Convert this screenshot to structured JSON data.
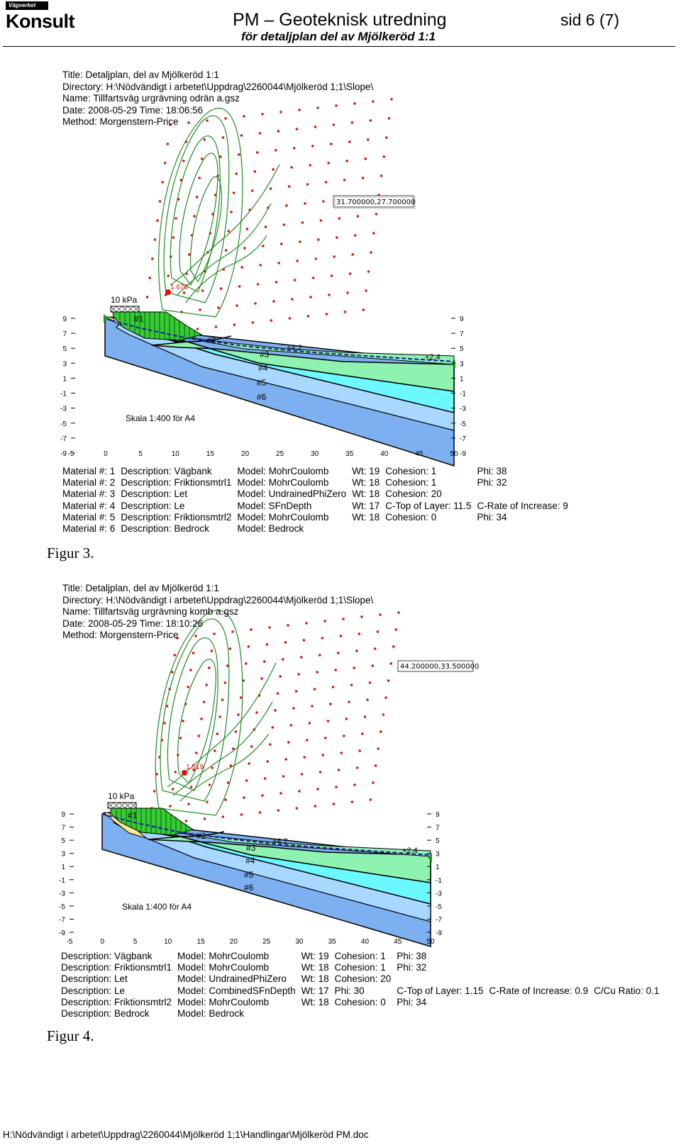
{
  "header": {
    "logo_top": "Vägverket",
    "logo_main": "Konsult",
    "title": "PM – Geoteknisk utredning",
    "subtitle": "för detaljplan del av Mjölkeröd 1:1",
    "page": "sid 6 (7)"
  },
  "fig3": {
    "meta": [
      "Title: Detaljplan, del av Mjölkeröd 1:1",
      "Directory: H:\\Nödvändigt i arbetet\\Uppdrag\\2260044\\Mjölkeröd 1;1\\Slope\\",
      "Name: Tillfartsväg urgrävning odrän a.gsz",
      "Date: 2008-05-29 Time: 18:06:56",
      "Method: Morgenstern-Price"
    ],
    "coord_box": "31.700000,27.700000",
    "factor_of_safety": "1.670",
    "load": "10 kPa",
    "scale_note": "Skala 1:400 för A4",
    "level_left": "+4.2",
    "level_right": "+2.4",
    "material_labels": [
      "#1",
      "#2",
      "#3",
      "#4",
      "#5",
      "#6"
    ],
    "x_ticks": [
      "-5",
      "0",
      "5",
      "10",
      "15",
      "20",
      "25",
      "30",
      "35",
      "40",
      "45",
      "50"
    ],
    "y_ticks": [
      "9",
      "7",
      "5",
      "3",
      "1",
      "-1",
      "-3",
      "-5",
      "-7",
      "-9"
    ],
    "materials": [
      [
        "Material #: 1",
        "Description: Vägbank",
        "Model: MohrCoulomb",
        "Wt: 19",
        "Cohesion: 1",
        "Phi: 38"
      ],
      [
        "Material #: 2",
        "Description: Friktionsmtrl1",
        "Model: MohrCoulomb",
        "Wt: 18",
        "Cohesion: 1",
        "Phi: 32"
      ],
      [
        "Material #: 3",
        "Description: Let",
        "Model: UndrainedPhiZero",
        "Wt: 18",
        "Cohesion: 20",
        ""
      ],
      [
        "Material #: 4",
        "Description: Le",
        "Model: SFnDepth",
        "Wt: 17",
        "C-Top of Layer: 11.5",
        "C-Rate of Increase: 9"
      ],
      [
        "Material #: 5",
        "Description: Friktionsmtrl2",
        "Model: MohrCoulomb",
        "Wt: 18",
        "Cohesion: 0",
        "Phi: 34"
      ],
      [
        "Material #: 6",
        "Description: Bedrock",
        "Model: Bedrock",
        "",
        "",
        ""
      ]
    ],
    "caption": "Figur 3."
  },
  "fig4": {
    "meta": [
      "Title: Detaljplan, del av Mjölkeröd 1:1",
      "Directory: H:\\Nödvändigt i arbetet\\Uppdrag\\2260044\\Mjölkeröd 1;1\\Slope\\",
      "Name: Tillfartsväg urgrävning komb a.gsz",
      "Date: 2008-05-29 Time: 18:10:26",
      "Method: Morgenstern-Price"
    ],
    "coord_box": "44.200000,33.500000",
    "factor_of_safety": "1.519",
    "load": "10 kPa",
    "scale_note": "Skala 1:400 för A4",
    "level_left": "+4.2",
    "level_right": "+2.4",
    "material_labels": [
      "#1",
      "#2",
      "#3",
      "#4",
      "#5",
      "#6"
    ],
    "x_ticks": [
      "-5",
      "0",
      "5",
      "10",
      "15",
      "20",
      "25",
      "30",
      "35",
      "40",
      "45",
      "50"
    ],
    "y_ticks": [
      "9",
      "7",
      "5",
      "3",
      "1",
      "-1",
      "-3",
      "-5",
      "-7",
      "-9"
    ],
    "materials": [
      [
        "Description: Vägbank",
        "Model: MohrCoulomb",
        "Wt: 19",
        "Cohesion: 1",
        "Phi: 38",
        "",
        ""
      ],
      [
        "Description: Friktionsmtrl1",
        "Model: MohrCoulomb",
        "Wt: 18",
        "Cohesion: 1",
        "Phi: 32",
        "",
        ""
      ],
      [
        "Description: Let",
        "Model: UndrainedPhiZero",
        "Wt: 18",
        "Cohesion: 20",
        "",
        "",
        ""
      ],
      [
        "Description: Le",
        "Model: CombinedSFnDepth",
        "Wt: 17",
        "Phi: 30",
        "C-Top of Layer: 1.15",
        "C-Rate of Increase: 0.9",
        "C/Cu Ratio: 0.1"
      ],
      [
        "Description: Friktionsmtrl2",
        "Model: MohrCoulomb",
        "Wt: 18",
        "Cohesion: 0",
        "Phi: 34",
        "",
        ""
      ],
      [
        "Description: Bedrock",
        "Model: Bedrock",
        "",
        "",
        "",
        "",
        ""
      ]
    ],
    "caption": "Figur 4."
  },
  "footer": "H:\\Nödvändigt i arbetet\\Uppdrag\\2260044\\Mjölkeröd 1;1\\Handlingar\\Mjölkeröd PM.doc",
  "colors": {
    "material_1": "#f5e98a",
    "material_2": "#33cc33",
    "material_3": "#8ef2b0",
    "material_4": "#6cf8ff",
    "material_5": "#a8d8ff",
    "material_6": "#7cb0f0",
    "grid_point": "#e01010",
    "contour": "#228b22"
  }
}
